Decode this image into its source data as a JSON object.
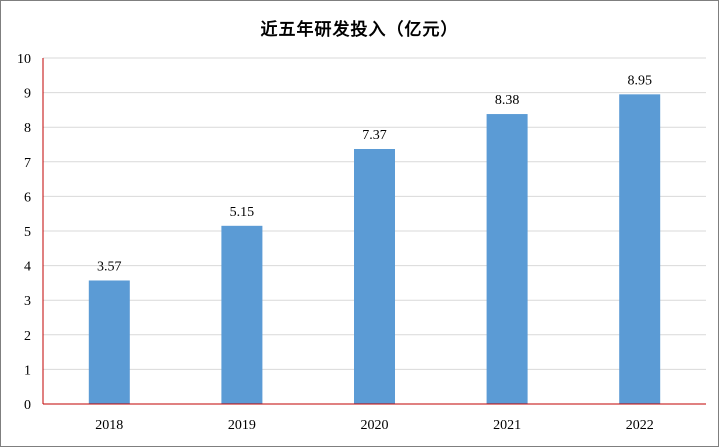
{
  "chart_data": {
    "type": "bar",
    "title": "近五年研发投入（亿元）",
    "categories": [
      "2018",
      "2019",
      "2020",
      "2021",
      "2022"
    ],
    "values": [
      3.57,
      5.15,
      7.37,
      8.38,
      8.95
    ],
    "data_labels": [
      "3.57",
      "5.15",
      "7.37",
      "8.38",
      "8.95"
    ],
    "yticks": [
      "0",
      "1",
      "2",
      "3",
      "4",
      "5",
      "6",
      "7",
      "8",
      "9",
      "10"
    ],
    "ylim": [
      0,
      10
    ],
    "xlabel": "",
    "ylabel": "",
    "grid": true,
    "legend": "none",
    "colors": {
      "bar": "#5b9bd5",
      "grid": "#d9d9d9",
      "axis": "#c00000",
      "frame": "#7f7f7f"
    }
  }
}
